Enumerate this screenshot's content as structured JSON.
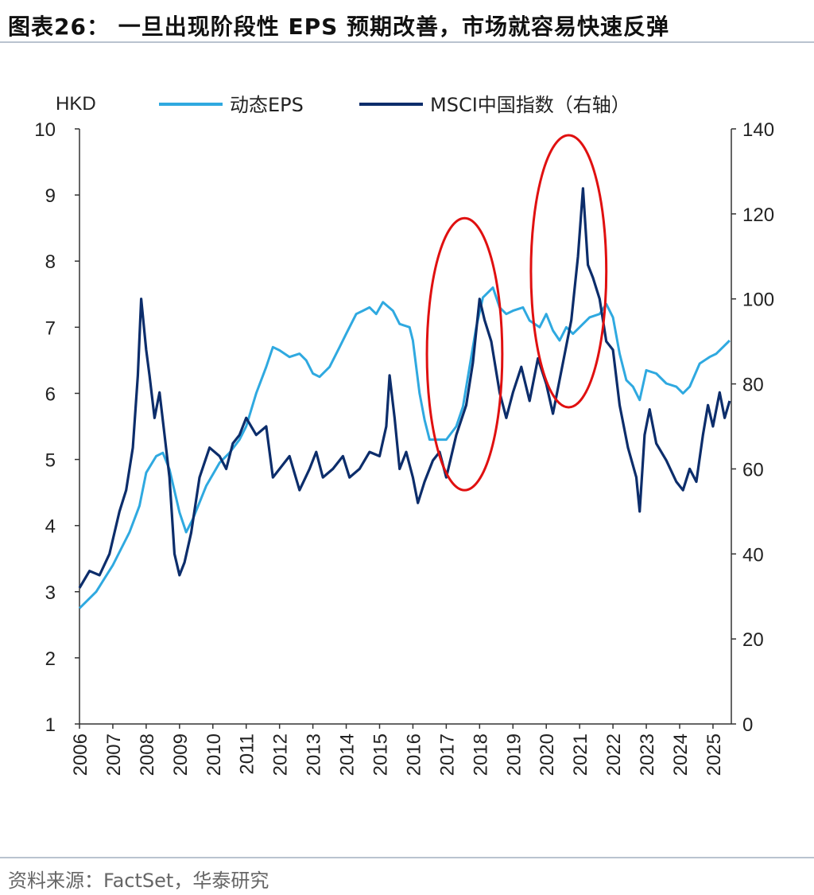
{
  "figure": {
    "title": "图表26： 一旦出现阶段性 EPS 预期改善，市场就容易快速反弹",
    "source": "资料来源：FactSet，华泰研究"
  },
  "colors": {
    "eps": "#2fa9e0",
    "msci": "#0c2d6b",
    "highlight": "#e01010"
  },
  "chart_data": {
    "type": "line",
    "left_axis_label": "HKD",
    "y_left": {
      "min": 1,
      "max": 10,
      "ticks": [
        1,
        2,
        3,
        4,
        5,
        6,
        7,
        8,
        9,
        10
      ]
    },
    "y_right": {
      "min": 0,
      "max": 140,
      "ticks": [
        0,
        20,
        40,
        60,
        80,
        100,
        120,
        140
      ]
    },
    "x_range": [
      2006,
      2025.55
    ],
    "x_ticks": [
      "2006",
      "2007",
      "2008",
      "2009",
      "2010",
      "2011",
      "2012",
      "2013",
      "2014",
      "2015",
      "2016",
      "2017",
      "2018",
      "2019",
      "2020",
      "2021",
      "2022",
      "2023",
      "2024",
      "2025"
    ],
    "grid": false,
    "legend_position": "top",
    "series": [
      {
        "name": "动态EPS",
        "axis": "left",
        "points": [
          [
            2006.0,
            2.75
          ],
          [
            2006.5,
            3.0
          ],
          [
            2007.0,
            3.4
          ],
          [
            2007.5,
            3.9
          ],
          [
            2007.8,
            4.3
          ],
          [
            2008.0,
            4.8
          ],
          [
            2008.3,
            5.05
          ],
          [
            2008.5,
            5.1
          ],
          [
            2008.7,
            4.85
          ],
          [
            2009.0,
            4.2
          ],
          [
            2009.2,
            3.9
          ],
          [
            2009.4,
            4.1
          ],
          [
            2009.8,
            4.6
          ],
          [
            2010.2,
            4.95
          ],
          [
            2010.5,
            5.1
          ],
          [
            2010.8,
            5.3
          ],
          [
            2011.0,
            5.5
          ],
          [
            2011.3,
            6.0
          ],
          [
            2011.6,
            6.4
          ],
          [
            2011.8,
            6.7
          ],
          [
            2012.0,
            6.65
          ],
          [
            2012.3,
            6.55
          ],
          [
            2012.6,
            6.6
          ],
          [
            2012.8,
            6.5
          ],
          [
            2013.0,
            6.3
          ],
          [
            2013.2,
            6.25
          ],
          [
            2013.5,
            6.4
          ],
          [
            2013.8,
            6.7
          ],
          [
            2014.0,
            6.9
          ],
          [
            2014.3,
            7.2
          ],
          [
            2014.5,
            7.25
          ],
          [
            2014.7,
            7.3
          ],
          [
            2014.9,
            7.2
          ],
          [
            2015.1,
            7.38
          ],
          [
            2015.4,
            7.25
          ],
          [
            2015.6,
            7.05
          ],
          [
            2015.9,
            7.0
          ],
          [
            2016.0,
            6.8
          ],
          [
            2016.2,
            6.0
          ],
          [
            2016.35,
            5.6
          ],
          [
            2016.5,
            5.3
          ],
          [
            2016.7,
            5.3
          ],
          [
            2017.0,
            5.3
          ],
          [
            2017.3,
            5.5
          ],
          [
            2017.5,
            5.8
          ],
          [
            2017.7,
            6.4
          ],
          [
            2017.9,
            7.0
          ],
          [
            2018.1,
            7.45
          ],
          [
            2018.4,
            7.6
          ],
          [
            2018.6,
            7.3
          ],
          [
            2018.8,
            7.2
          ],
          [
            2019.0,
            7.25
          ],
          [
            2019.3,
            7.3
          ],
          [
            2019.5,
            7.1
          ],
          [
            2019.8,
            7.0
          ],
          [
            2020.0,
            7.2
          ],
          [
            2020.2,
            6.95
          ],
          [
            2020.4,
            6.8
          ],
          [
            2020.6,
            7.0
          ],
          [
            2020.8,
            6.9
          ],
          [
            2021.0,
            7.0
          ],
          [
            2021.3,
            7.15
          ],
          [
            2021.6,
            7.2
          ],
          [
            2021.8,
            7.35
          ],
          [
            2022.0,
            7.15
          ],
          [
            2022.2,
            6.6
          ],
          [
            2022.4,
            6.2
          ],
          [
            2022.6,
            6.1
          ],
          [
            2022.8,
            5.9
          ],
          [
            2023.0,
            6.35
          ],
          [
            2023.3,
            6.3
          ],
          [
            2023.6,
            6.15
          ],
          [
            2023.9,
            6.1
          ],
          [
            2024.1,
            6.0
          ],
          [
            2024.3,
            6.1
          ],
          [
            2024.6,
            6.45
          ],
          [
            2024.9,
            6.55
          ],
          [
            2025.1,
            6.6
          ],
          [
            2025.3,
            6.7
          ],
          [
            2025.5,
            6.8
          ]
        ]
      },
      {
        "name": "MSCI中国指数（右轴）",
        "axis": "right",
        "points": [
          [
            2006.0,
            32
          ],
          [
            2006.3,
            36
          ],
          [
            2006.6,
            35
          ],
          [
            2006.9,
            40
          ],
          [
            2007.2,
            50
          ],
          [
            2007.4,
            55
          ],
          [
            2007.6,
            65
          ],
          [
            2007.75,
            82
          ],
          [
            2007.85,
            100
          ],
          [
            2008.0,
            88
          ],
          [
            2008.1,
            82
          ],
          [
            2008.25,
            72
          ],
          [
            2008.4,
            78
          ],
          [
            2008.55,
            68
          ],
          [
            2008.7,
            58
          ],
          [
            2008.85,
            40
          ],
          [
            2009.0,
            35
          ],
          [
            2009.15,
            38
          ],
          [
            2009.35,
            45
          ],
          [
            2009.6,
            58
          ],
          [
            2009.9,
            65
          ],
          [
            2010.2,
            63
          ],
          [
            2010.4,
            60
          ],
          [
            2010.6,
            66
          ],
          [
            2010.8,
            68
          ],
          [
            2011.0,
            72
          ],
          [
            2011.3,
            68
          ],
          [
            2011.6,
            70
          ],
          [
            2011.8,
            58
          ],
          [
            2012.0,
            60
          ],
          [
            2012.3,
            63
          ],
          [
            2012.6,
            55
          ],
          [
            2012.9,
            60
          ],
          [
            2013.1,
            64
          ],
          [
            2013.3,
            58
          ],
          [
            2013.6,
            60
          ],
          [
            2013.9,
            63
          ],
          [
            2014.1,
            58
          ],
          [
            2014.4,
            60
          ],
          [
            2014.7,
            64
          ],
          [
            2015.0,
            63
          ],
          [
            2015.2,
            70
          ],
          [
            2015.3,
            82
          ],
          [
            2015.45,
            72
          ],
          [
            2015.6,
            60
          ],
          [
            2015.8,
            64
          ],
          [
            2016.0,
            58
          ],
          [
            2016.15,
            52
          ],
          [
            2016.35,
            57
          ],
          [
            2016.6,
            62
          ],
          [
            2016.8,
            64
          ],
          [
            2017.0,
            58
          ],
          [
            2017.3,
            68
          ],
          [
            2017.6,
            75
          ],
          [
            2017.8,
            85
          ],
          [
            2018.0,
            100
          ],
          [
            2018.15,
            95
          ],
          [
            2018.35,
            90
          ],
          [
            2018.6,
            78
          ],
          [
            2018.8,
            72
          ],
          [
            2019.0,
            78
          ],
          [
            2019.25,
            84
          ],
          [
            2019.5,
            76
          ],
          [
            2019.75,
            86
          ],
          [
            2020.0,
            80
          ],
          [
            2020.2,
            73
          ],
          [
            2020.5,
            85
          ],
          [
            2020.75,
            95
          ],
          [
            2020.95,
            110
          ],
          [
            2021.1,
            126
          ],
          [
            2021.25,
            108
          ],
          [
            2021.4,
            105
          ],
          [
            2021.6,
            100
          ],
          [
            2021.8,
            90
          ],
          [
            2022.0,
            88
          ],
          [
            2022.2,
            75
          ],
          [
            2022.45,
            65
          ],
          [
            2022.7,
            58
          ],
          [
            2022.8,
            50
          ],
          [
            2022.95,
            68
          ],
          [
            2023.1,
            74
          ],
          [
            2023.3,
            66
          ],
          [
            2023.6,
            62
          ],
          [
            2023.9,
            57
          ],
          [
            2024.1,
            55
          ],
          [
            2024.3,
            60
          ],
          [
            2024.5,
            57
          ],
          [
            2024.7,
            68
          ],
          [
            2024.85,
            75
          ],
          [
            2025.0,
            70
          ],
          [
            2025.2,
            78
          ],
          [
            2025.35,
            72
          ],
          [
            2025.5,
            76
          ]
        ]
      }
    ],
    "annotations": [
      {
        "type": "ellipse",
        "x_center": 2017.55,
        "y_right_center": 87,
        "x_radius": 1.13,
        "y_right_radius": 32
      },
      {
        "type": "ellipse",
        "x_center": 2020.67,
        "y_right_center": 106.5,
        "x_radius": 1.13,
        "y_right_radius": 32
      }
    ]
  }
}
